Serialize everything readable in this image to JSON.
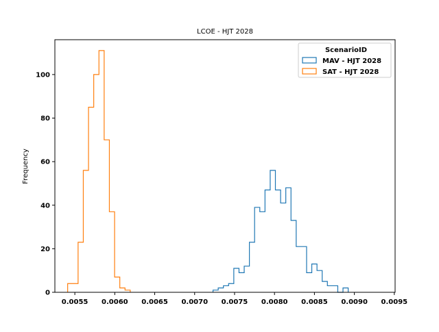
{
  "chart_data": {
    "type": "histogram",
    "title": "LCOE - HJT 2028",
    "xlabel": "",
    "ylabel": "Frequency",
    "xlim": [
      0.00525,
      0.00951
    ],
    "ylim": [
      0,
      116
    ],
    "xticks": [
      0.0055,
      0.006,
      0.0065,
      0.007,
      0.0075,
      0.008,
      0.0085,
      0.009,
      0.0095
    ],
    "xtick_labels": [
      "0.0055",
      "0.0060",
      "0.0065",
      "0.0070",
      "0.0075",
      "0.0080",
      "0.0085",
      "0.0090",
      "0.0095"
    ],
    "yticks": [
      0,
      20,
      40,
      60,
      80,
      100
    ],
    "ytick_labels": [
      "0",
      "20",
      "40",
      "60",
      "80",
      "100"
    ],
    "grid": false,
    "legend": {
      "title": "ScenarioID",
      "placement": "upper right"
    },
    "series": [
      {
        "name": "MAV - HJT 2028",
        "color": "#1f77b4",
        "bin_start": 0.00723,
        "bin_width": 6.51e-05,
        "counts": [
          1,
          2,
          3,
          4,
          11,
          9,
          12,
          23,
          39,
          37,
          47,
          56,
          47,
          41,
          48,
          33,
          21,
          21,
          9,
          13,
          10,
          5,
          3,
          3,
          0,
          2
        ]
      },
      {
        "name": "SAT - HJT 2028",
        "color": "#ff7f0e",
        "bin_start": 0.00541,
        "bin_width": 6.53e-05,
        "counts": [
          4,
          4,
          23,
          56,
          85,
          100,
          111,
          70,
          37,
          7,
          2,
          1
        ]
      }
    ]
  }
}
